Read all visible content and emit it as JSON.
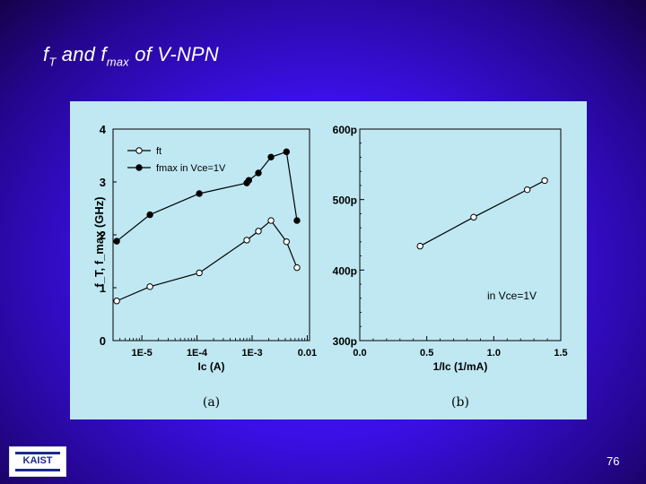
{
  "slide": {
    "title": {
      "t1": "f",
      "s1": "T",
      "t2": " and f",
      "s2": "max",
      "t3": " of V-NPN"
    },
    "page_number": "76",
    "logo_text": "KAIST"
  },
  "chart_data": [
    {
      "type": "line",
      "caption": "(a)",
      "xlabel": "Ic (A)",
      "ylabel": "f_T, f_max (GHz)",
      "x_scale": "log",
      "xlim": [
        3e-06,
        0.011
      ],
      "ylim": [
        0,
        4
      ],
      "x_ticks": [
        1e-05,
        0.0001,
        0.001,
        0.01
      ],
      "x_tick_labels": [
        "1E-5",
        "1E-4",
        "1E-3",
        "0.01"
      ],
      "y_ticks": [
        0,
        1,
        2,
        3,
        4
      ],
      "y_tick_labels": [
        "0",
        "1",
        "2",
        "3",
        "4"
      ],
      "legend_position": "top-left",
      "series": [
        {
          "name": "ft",
          "marker": "open",
          "x": [
            3.5e-06,
            1.4e-05,
            0.00011,
            0.0008,
            0.0013,
            0.0022,
            0.0042,
            0.0065
          ],
          "y": [
            0.75,
            1.02,
            1.28,
            1.9,
            2.07,
            2.27,
            1.87,
            1.38
          ]
        },
        {
          "name": "fmax",
          "marker": "filled",
          "x": [
            3.5e-06,
            1.4e-05,
            0.00011,
            0.0008,
            0.00087,
            0.0013,
            0.0022,
            0.0042,
            0.0065
          ],
          "y": [
            1.88,
            2.38,
            2.78,
            2.98,
            3.03,
            3.17,
            3.47,
            3.57,
            2.27
          ]
        }
      ],
      "annotation": "in Vce=1V"
    },
    {
      "type": "line",
      "caption": "(b)",
      "xlabel": "1/Ic (1/mA)",
      "x_scale": "linear",
      "xlim": [
        0.0,
        1.5
      ],
      "ylim": [
        300,
        600
      ],
      "x_ticks": [
        0.0,
        0.5,
        1.0,
        1.5
      ],
      "x_tick_labels": [
        "0.0",
        "0.5",
        "1.0",
        "1.5"
      ],
      "y_ticks": [
        300,
        400,
        500,
        600
      ],
      "y_tick_labels": [
        "300p",
        "400p",
        "500p",
        "600p"
      ],
      "series": [
        {
          "marker": "open",
          "x": [
            0.45,
            0.85,
            1.25,
            1.38
          ],
          "y": [
            434,
            475,
            514,
            527
          ]
        }
      ],
      "annotation": "in Vce=1V"
    }
  ]
}
